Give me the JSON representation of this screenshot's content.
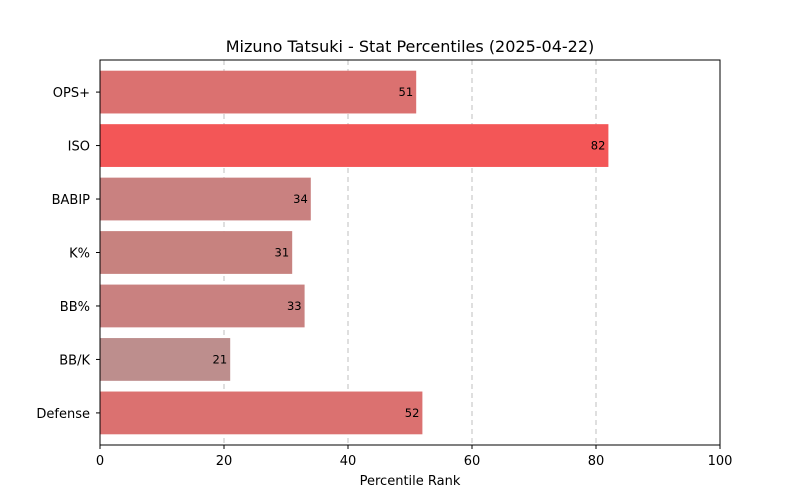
{
  "chart_data": {
    "type": "bar",
    "orientation": "horizontal",
    "title": "Mizuno Tatsuki - Stat Percentiles (2025-04-22)",
    "xlabel": "Percentile Rank",
    "ylabel": "",
    "xlim": [
      0,
      100
    ],
    "xticks": [
      "0",
      "20",
      "40",
      "60",
      "80",
      "100"
    ],
    "grid": "x-dashed",
    "categories": [
      "OPS+",
      "ISO",
      "BABIP",
      "K%",
      "BB%",
      "BB/K",
      "Defense"
    ],
    "values": [
      51,
      82,
      34,
      31,
      33,
      21,
      52
    ],
    "colors": [
      "#db7170",
      "#f35657",
      "#c98180",
      "#c7827f",
      "#c98180",
      "#bd8e8d",
      "#db7170"
    ]
  }
}
